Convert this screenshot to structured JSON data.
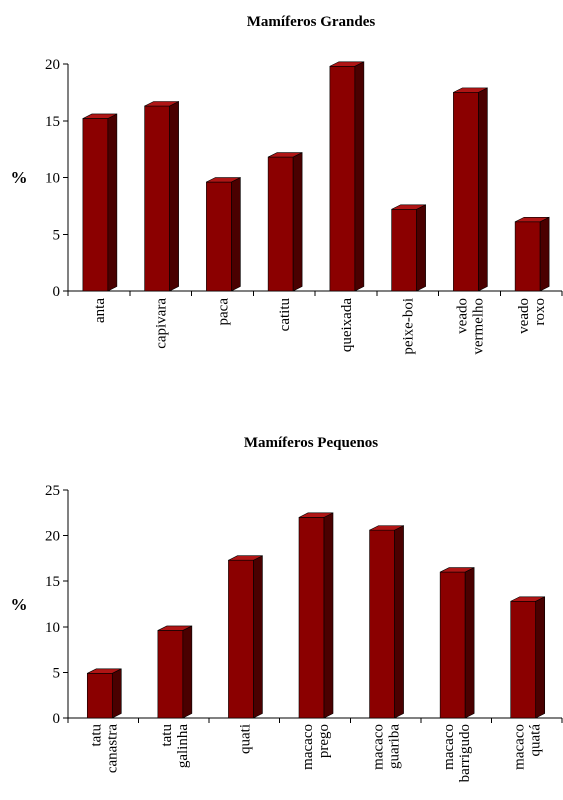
{
  "chart_data": [
    {
      "type": "bar",
      "title": "Mamíferos Grandes",
      "xlabel": "",
      "ylabel": "%",
      "ylim": [
        0,
        20
      ],
      "yticks": [
        0,
        5,
        10,
        15,
        20
      ],
      "grid": false,
      "bar_style": "3d",
      "colors": {
        "front": "#8b0000",
        "side": "#4a0000",
        "top": "#b01515"
      },
      "categories": [
        [
          "anta"
        ],
        [
          "capivara"
        ],
        [
          "paca"
        ],
        [
          "catitu"
        ],
        [
          "queixada"
        ],
        [
          "peixe-boi"
        ],
        [
          "veado",
          "vermelho"
        ],
        [
          "veado",
          "roxo"
        ]
      ],
      "values": [
        15.2,
        16.3,
        9.6,
        11.8,
        19.8,
        7.2,
        17.5,
        6.1
      ]
    },
    {
      "type": "bar",
      "title": "Mamíferos Pequenos",
      "xlabel": "",
      "ylabel": "%",
      "ylim": [
        0,
        25
      ],
      "yticks": [
        0,
        5,
        10,
        15,
        20,
        25
      ],
      "grid": false,
      "bar_style": "3d",
      "colors": {
        "front": "#8b0000",
        "side": "#4a0000",
        "top": "#b01515"
      },
      "categories": [
        [
          "tatu",
          "canastra"
        ],
        [
          "tatu",
          "galinha"
        ],
        [
          "quati"
        ],
        [
          "macaco",
          "prego"
        ],
        [
          "macaco",
          "guariba"
        ],
        [
          "macaco",
          "barrigudo"
        ],
        [
          "macaco",
          "quatá"
        ]
      ],
      "values": [
        4.9,
        9.6,
        17.3,
        22.0,
        20.6,
        16.0,
        12.8
      ]
    }
  ]
}
